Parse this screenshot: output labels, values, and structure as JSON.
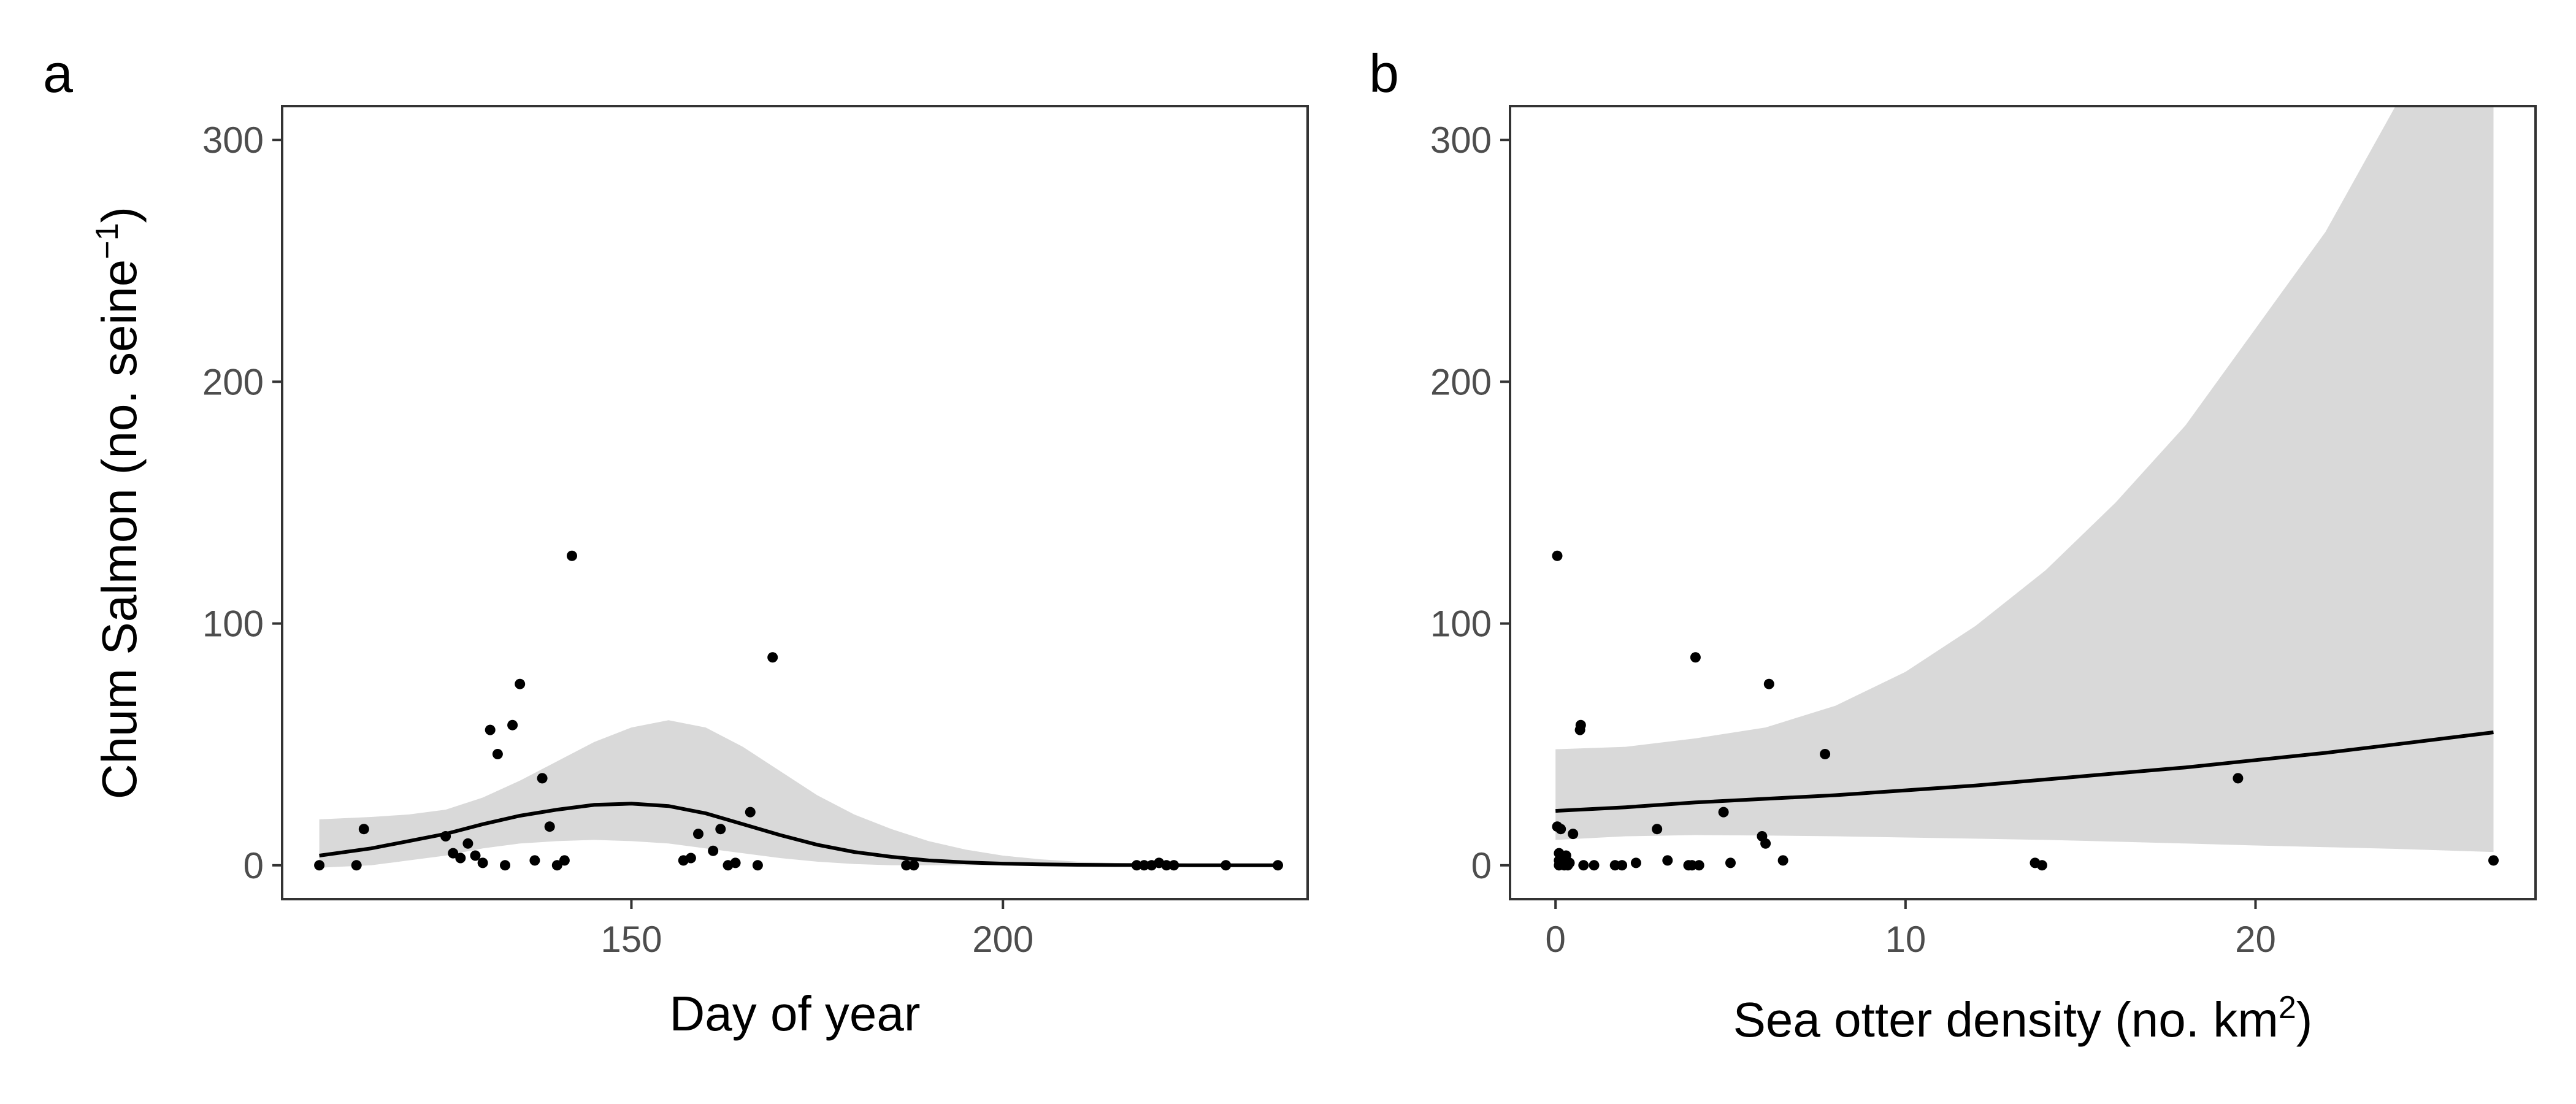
{
  "chart_data": [
    {
      "panel": "a",
      "type": "scatter",
      "xlabel": "Day of year",
      "ylabel": "Chum Salmon (no. seine",
      "ylabel_sup": "−1",
      "ylabel_close": ")",
      "xlim": [
        103,
        241
      ],
      "ylim": [
        -14,
        314
      ],
      "xticks": [
        150,
        200
      ],
      "yticks": [
        0,
        100,
        200,
        300
      ],
      "grid": false,
      "points": [
        [
          108,
          0
        ],
        [
          113,
          0
        ],
        [
          114,
          15
        ],
        [
          125,
          12
        ],
        [
          126,
          5
        ],
        [
          127,
          3
        ],
        [
          128,
          9
        ],
        [
          129,
          4
        ],
        [
          130,
          1
        ],
        [
          131,
          56
        ],
        [
          132,
          46
        ],
        [
          133,
          0
        ],
        [
          134,
          58
        ],
        [
          135,
          75
        ],
        [
          137,
          2
        ],
        [
          138,
          36
        ],
        [
          139,
          16
        ],
        [
          140,
          0
        ],
        [
          141,
          2
        ],
        [
          142,
          128
        ],
        [
          157,
          2
        ],
        [
          158,
          3
        ],
        [
          159,
          13
        ],
        [
          161,
          6
        ],
        [
          162,
          15
        ],
        [
          163,
          0
        ],
        [
          164,
          1
        ],
        [
          166,
          22
        ],
        [
          167,
          0
        ],
        [
          169,
          86
        ],
        [
          187,
          0
        ],
        [
          188,
          0
        ],
        [
          218,
          0
        ],
        [
          219,
          0
        ],
        [
          220,
          0
        ],
        [
          221,
          1
        ],
        [
          222,
          0
        ],
        [
          223,
          0
        ],
        [
          230,
          0
        ],
        [
          237,
          0
        ]
      ],
      "fit": {
        "x": [
          108,
          115,
          120,
          125,
          130,
          135,
          140,
          145,
          150,
          155,
          160,
          165,
          170,
          175,
          180,
          185,
          190,
          195,
          200,
          205,
          210,
          215,
          220,
          225,
          230,
          237
        ],
        "y": [
          4,
          7,
          10,
          13,
          17,
          20.5,
          23,
          25,
          25.5,
          24.5,
          21.5,
          17,
          12.5,
          8.5,
          5.5,
          3.5,
          2,
          1.2,
          0.7,
          0.4,
          0.2,
          0.1,
          0.1,
          0,
          0,
          0
        ],
        "lower": [
          -1,
          0,
          2,
          4,
          7,
          9,
          10,
          10.5,
          10,
          9,
          7,
          5,
          3,
          1.5,
          0.5,
          0,
          0,
          0,
          0,
          0,
          0,
          0,
          0,
          0,
          0,
          0
        ],
        "upper": [
          19,
          20,
          21,
          23,
          28,
          35,
          43,
          51,
          57,
          60,
          57,
          49,
          39,
          29,
          21,
          15,
          10,
          6.5,
          4,
          2.5,
          1.5,
          1,
          0.5,
          0.3,
          0.2,
          0.2
        ]
      }
    },
    {
      "panel": "b",
      "type": "scatter",
      "xlabel": "Sea otter density (no. km",
      "xlabel_sup": "2",
      "xlabel_close": ")",
      "xlim": [
        -1.3,
        28
      ],
      "ylim": [
        -14,
        314
      ],
      "xticks": [
        0,
        10,
        20
      ],
      "yticks": [
        0,
        100,
        200,
        300
      ],
      "grid": false,
      "points": [
        [
          0.05,
          128
        ],
        [
          0.05,
          16
        ],
        [
          0.1,
          5
        ],
        [
          0.1,
          2
        ],
        [
          0.1,
          0
        ],
        [
          0.15,
          15
        ],
        [
          0.2,
          3
        ],
        [
          0.2,
          1
        ],
        [
          0.25,
          0
        ],
        [
          0.3,
          4
        ],
        [
          0.35,
          0
        ],
        [
          0.4,
          1
        ],
        [
          0.5,
          13
        ],
        [
          0.7,
          56
        ],
        [
          0.72,
          58
        ],
        [
          0.8,
          0
        ],
        [
          1.1,
          0
        ],
        [
          1.7,
          0
        ],
        [
          1.9,
          0
        ],
        [
          2.3,
          1
        ],
        [
          2.9,
          15
        ],
        [
          3.2,
          2
        ],
        [
          3.8,
          0
        ],
        [
          3.9,
          0
        ],
        [
          4.0,
          86
        ],
        [
          4.1,
          0
        ],
        [
          4.8,
          22
        ],
        [
          5.0,
          1
        ],
        [
          5.9,
          12
        ],
        [
          6.0,
          9
        ],
        [
          6.1,
          75
        ],
        [
          6.5,
          2
        ],
        [
          7.7,
          46
        ],
        [
          13.7,
          1
        ],
        [
          13.9,
          0
        ],
        [
          19.5,
          36
        ],
        [
          26.8,
          2
        ]
      ],
      "fit": {
        "x": [
          0,
          2,
          4,
          6,
          8,
          10,
          12,
          14,
          16,
          18,
          20,
          22,
          24,
          26.8
        ],
        "y": [
          22.5,
          24,
          26,
          27.5,
          29,
          31,
          33,
          35.5,
          38,
          40.5,
          43.5,
          46.5,
          50,
          55
        ],
        "lower": [
          10.5,
          12,
          12.5,
          12.3,
          12,
          11.5,
          11,
          10.5,
          9.8,
          9,
          8.2,
          7.5,
          6.8,
          5.5
        ],
        "upper": [
          48,
          49,
          52.5,
          57,
          66,
          80,
          99,
          122,
          150,
          182,
          222,
          262,
          314,
          314
        ]
      }
    }
  ],
  "colors": {
    "ribbon": "#d9d9d9",
    "line": "#000000",
    "point": "#000000",
    "panel_border": "#333333",
    "tick": "#333333"
  }
}
